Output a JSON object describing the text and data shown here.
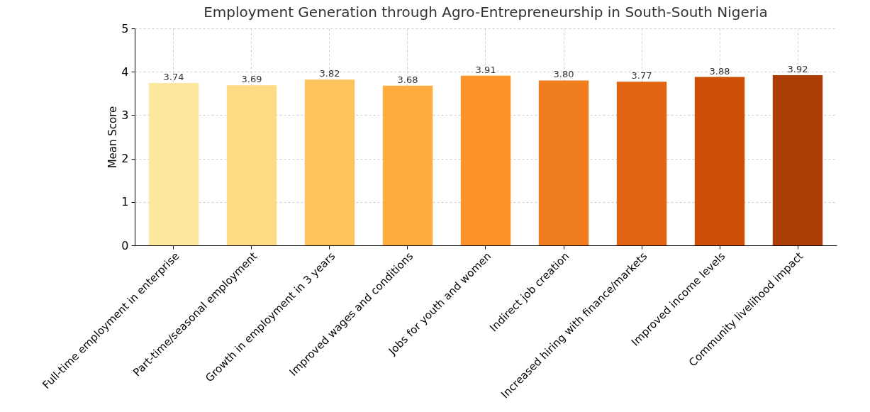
{
  "chart_data": {
    "type": "bar",
    "title": "Employment Generation through Agro-Entrepreneurship in South-South Nigeria",
    "ylabel": "Mean Score",
    "categories": [
      "Full-time employment in enterprise",
      "Part-time/seasonal employment",
      "Growth in employment in 3 years",
      "Improved wages and conditions",
      "Jobs for youth and women",
      "Indirect job creation",
      "Increased hiring with finance/markets",
      "Improved income levels",
      "Community livelihood impact"
    ],
    "values": [
      3.74,
      3.69,
      3.82,
      3.68,
      3.91,
      3.8,
      3.77,
      3.88,
      3.92
    ],
    "value_labels": [
      "3.74",
      "3.69",
      "3.82",
      "3.68",
      "3.91",
      "3.80",
      "3.77",
      "3.88",
      "3.92"
    ],
    "colors": [
      "#fee89e",
      "#fedb85",
      "#fec45c",
      "#feab40",
      "#fd9428",
      "#f07e1e",
      "#e06412",
      "#cc4f06",
      "#ac3d04"
    ],
    "ylim": [
      0,
      5
    ],
    "yticks": [
      0,
      1,
      2,
      3,
      4,
      5
    ],
    "grid": true,
    "legend": false
  }
}
